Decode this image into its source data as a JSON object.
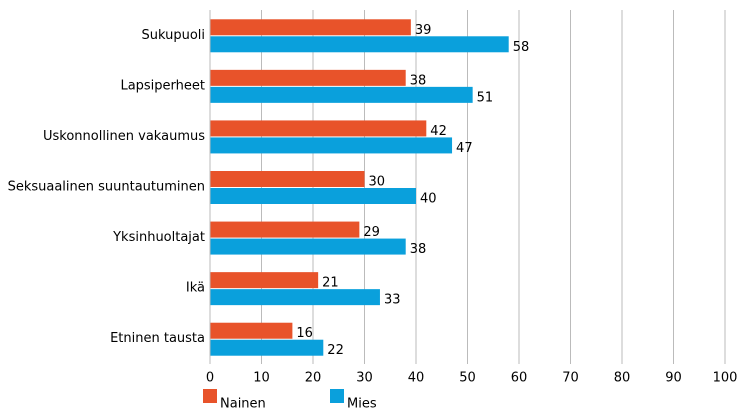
{
  "chart_data": {
    "type": "bar",
    "orientation": "horizontal",
    "categories": [
      "Sukupuoli",
      "Lapsiperheet",
      "Uskonnollinen vakaumus",
      "Seksuaalinen suuntautuminen",
      "Yksinhuoltajat",
      "Ikä",
      "Etninen tausta"
    ],
    "series": [
      {
        "name": "Nainen",
        "color": "#e8532a",
        "values": [
          39,
          38,
          42,
          30,
          29,
          21,
          16
        ]
      },
      {
        "name": "Mies",
        "color": "#0aa0dc",
        "values": [
          58,
          51,
          47,
          40,
          38,
          33,
          22
        ]
      }
    ],
    "xlim": [
      0,
      100
    ],
    "xticks": [
      0,
      10,
      20,
      30,
      40,
      50,
      60,
      70,
      80,
      90,
      100
    ],
    "grid": true,
    "legend": "bottom"
  }
}
